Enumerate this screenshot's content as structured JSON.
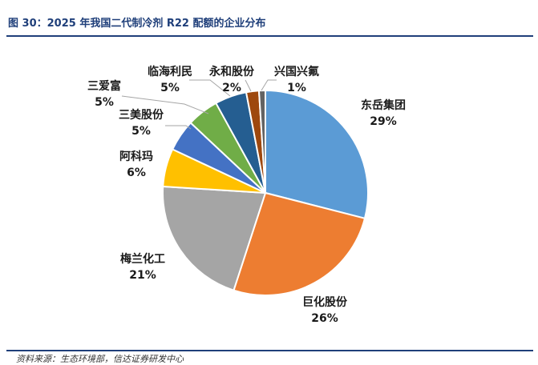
{
  "figure": {
    "title": "图 30：2025 年我国二代制冷剂 R22 配额的企业分布",
    "source": "资料来源：生态环境部，信达证券研发中心"
  },
  "chart_data": {
    "type": "pie",
    "title": "",
    "categories": [
      "东岳集团",
      "巨化股份",
      "梅兰化工",
      "阿科玛",
      "三美股份",
      "三爱富",
      "临海利民",
      "永和股份",
      "兴国兴氟"
    ],
    "values": [
      29,
      26,
      21,
      6,
      5,
      5,
      5,
      2,
      1
    ],
    "value_labels": [
      "29%",
      "26%",
      "21%",
      "6%",
      "5%",
      "5%",
      "5%",
      "2%",
      "1%"
    ],
    "colors": [
      "#5b9bd5",
      "#ed7d31",
      "#a5a5a5",
      "#ffc000",
      "#4472c4",
      "#70ad47",
      "#255e91",
      "#9e480e",
      "#636363"
    ],
    "legend": "none",
    "start_angle": "12 o'clock, clockwise"
  }
}
